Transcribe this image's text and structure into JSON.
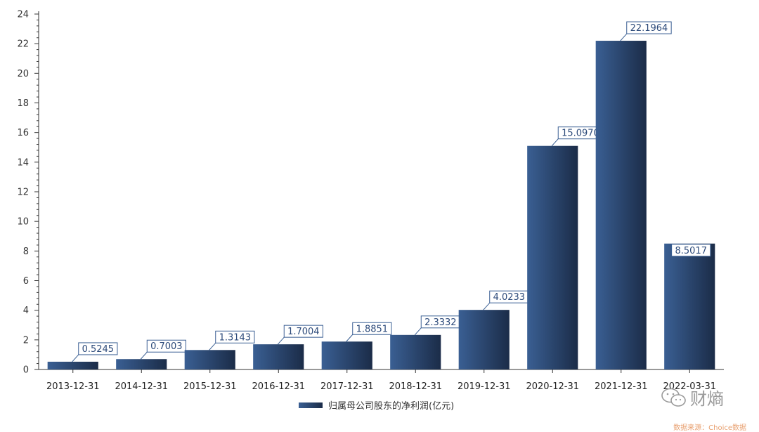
{
  "chart_data": {
    "type": "bar",
    "categories": [
      "2013-12-31",
      "2014-12-31",
      "2015-12-31",
      "2016-12-31",
      "2017-12-31",
      "2018-12-31",
      "2019-12-31",
      "2020-12-31",
      "2021-12-31",
      "2022-03-31"
    ],
    "series": [
      {
        "name": "归属母公司股东的净利润(亿元)",
        "values": [
          0.5245,
          0.7003,
          1.3143,
          1.7004,
          1.8851,
          2.3332,
          4.0233,
          15.097,
          22.1964,
          8.5017
        ]
      }
    ],
    "data_labels": [
      "0.5245",
      "0.7003",
      "1.3143",
      "1.7004",
      "1.8851",
      "2.3332",
      "4.0233",
      "15.0970",
      "22.1964",
      "8.5017"
    ],
    "ylim": [
      0,
      24
    ],
    "yticks": [
      0,
      2,
      4,
      6,
      8,
      10,
      12,
      14,
      16,
      18,
      20,
      22,
      24
    ],
    "grid": false,
    "legend_position": "bottom-center",
    "bar_color_start": "#3a5f93",
    "bar_color_end": "#1b2c48"
  },
  "legend": {
    "label": "归属母公司股东的净利润(亿元)"
  },
  "watermark": {
    "text": "财熵",
    "icon": "wechat-icon"
  },
  "source": {
    "text": "数据来源：Choice数据"
  }
}
